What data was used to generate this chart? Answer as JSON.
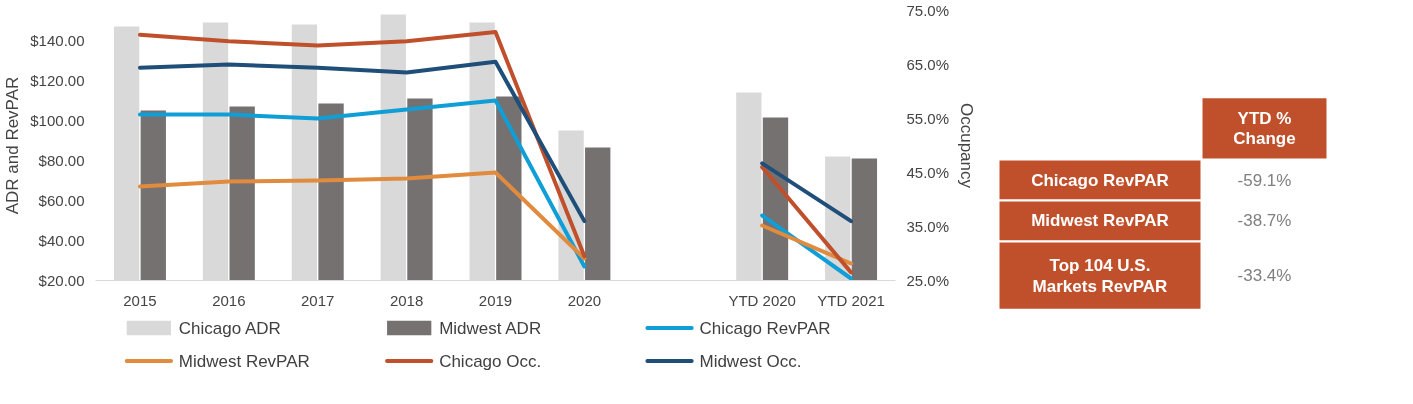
{
  "chart_data": [
    {
      "type": "bar",
      "ylabel": "ADR and RevPAR",
      "y2label": "Occupancy",
      "categories": [
        "2015",
        "2016",
        "2017",
        "2018",
        "2019",
        "2020",
        null,
        "YTD 2020",
        "YTD 2021"
      ],
      "series": [
        {
          "name": "Chicago ADR",
          "type": "bar",
          "color": "#d9d9d9",
          "values": [
            147,
            149,
            148,
            153,
            149,
            95,
            null,
            114,
            82
          ]
        },
        {
          "name": "Midwest ADR",
          "type": "bar",
          "color": "#767171",
          "values": [
            105,
            107,
            108.5,
            111,
            112,
            86.5,
            null,
            101.5,
            81
          ]
        },
        {
          "name": "Chicago RevPAR",
          "type": "line",
          "color": "#0f9ed5",
          "values": [
            103,
            103,
            101,
            105.5,
            110,
            27,
            null,
            52.5,
            21
          ]
        },
        {
          "name": "Midwest RevPAR",
          "type": "line",
          "color": "#e08b3e",
          "values": [
            67,
            69.5,
            70,
            71,
            74,
            31,
            null,
            47.5,
            28.5
          ]
        },
        {
          "name": "Chicago Occ.",
          "type": "line",
          "axis": "y2",
          "color": "#c0502b",
          "values": [
            70.5,
            69.3,
            68.5,
            69.3,
            71,
            29.5,
            null,
            46,
            26.5
          ]
        },
        {
          "name": "Midwest Occ.",
          "type": "line",
          "axis": "y2",
          "color": "#1f4e79",
          "values": [
            64.4,
            65,
            64.4,
            63.5,
            65.5,
            36,
            null,
            46.7,
            36
          ]
        }
      ],
      "ylim": [
        20,
        155
      ],
      "yticks": [
        {
          "value": 20,
          "label": "$20.00"
        },
        {
          "value": 40,
          "label": "$40.00"
        },
        {
          "value": 60,
          "label": "$60.00"
        },
        {
          "value": 80,
          "label": "$80.00"
        },
        {
          "value": 100,
          "label": "$100.00"
        },
        {
          "value": 120,
          "label": "$120.00"
        },
        {
          "value": 140,
          "label": "$140.00"
        }
      ],
      "y2lim": [
        25,
        75
      ],
      "y2ticks": [
        {
          "value": 25,
          "label": "25.0%"
        },
        {
          "value": 35,
          "label": "35.0%"
        },
        {
          "value": 45,
          "label": "45.0%"
        },
        {
          "value": 55,
          "label": "55.0%"
        },
        {
          "value": 65,
          "label": "65.0%"
        },
        {
          "value": 75,
          "label": "75.0%"
        }
      ],
      "grid": false,
      "legend": "bottom",
      "line_style": "solid",
      "marker": "none"
    },
    {
      "type": "other",
      "title": "YTD % Change",
      "categories": [
        "Chicago RevPAR",
        "Midwest RevPAR",
        "Top 104 U.S. Markets RevPAR"
      ],
      "value_labels": [
        "-59.1%",
        "-38.7%",
        "-33.4%"
      ],
      "color": "#c0502b"
    }
  ]
}
